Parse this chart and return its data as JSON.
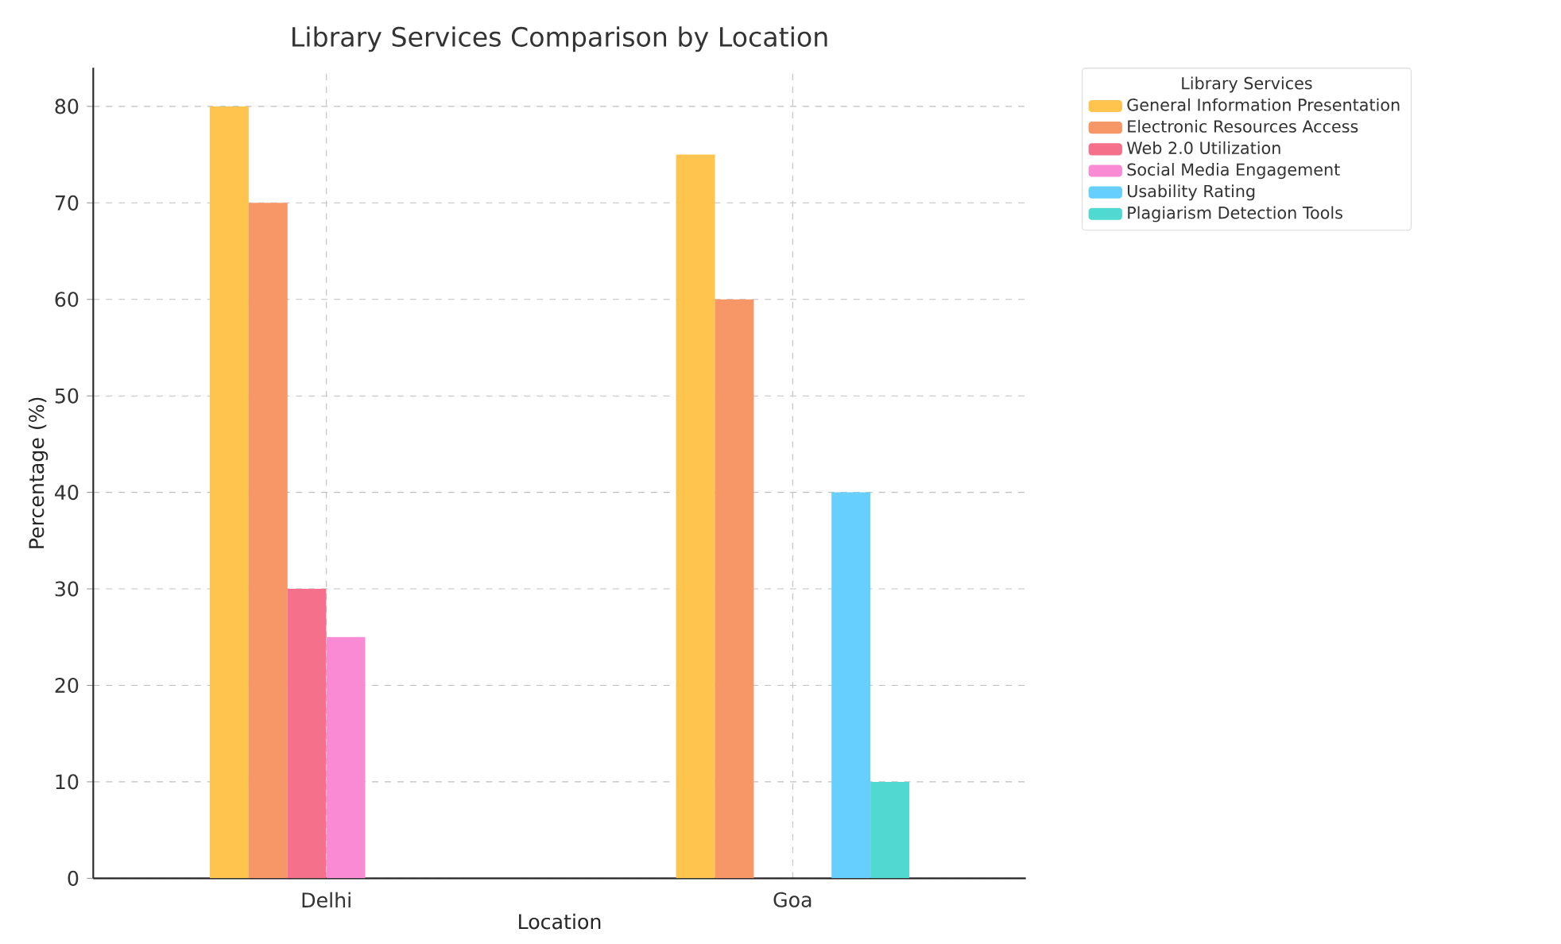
{
  "chart_data": {
    "type": "bar",
    "title": "Library Services Comparison by Location",
    "xlabel": "Location",
    "ylabel": "Percentage (%)",
    "legend_title": "Library Services",
    "categories": [
      "Delhi",
      "Goa"
    ],
    "series": [
      {
        "name": "General Information Presentation",
        "color": "#ffc44d",
        "values": [
          80,
          75
        ]
      },
      {
        "name": "Electronic Resources Access",
        "color": "#f79767",
        "values": [
          70,
          60
        ]
      },
      {
        "name": "Web 2.0 Utilization",
        "color": "#f5708a",
        "values": [
          30,
          null
        ]
      },
      {
        "name": "Social Media Engagement",
        "color": "#f88bd4",
        "values": [
          25,
          null
        ]
      },
      {
        "name": "Usability Rating",
        "color": "#66cffc",
        "values": [
          null,
          40
        ]
      },
      {
        "name": "Plagiarism Detection Tools",
        "color": "#4fd9d1",
        "values": [
          null,
          10
        ]
      }
    ],
    "ylim": [
      0,
      84
    ],
    "yticks": [
      0,
      10,
      20,
      30,
      40,
      50,
      60,
      70,
      80
    ],
    "grid": true,
    "legend": "top right"
  }
}
